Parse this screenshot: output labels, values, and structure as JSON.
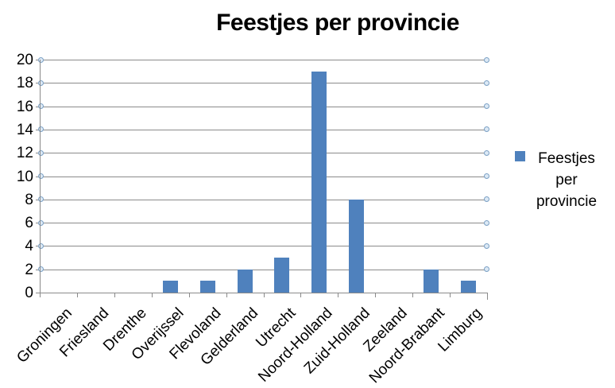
{
  "chart_data": {
    "type": "bar",
    "title": "Feestjes per provincie",
    "series_name": "Feestjes per provincie",
    "categories": [
      "Groningen",
      "Friesland",
      "Drenthe",
      "Overijssel",
      "Flevoland",
      "Gelderland",
      "Utrecht",
      "Noord-Holland",
      "Zuid-Holland",
      "Zeeland",
      "Noord-Brabant",
      "Limburg"
    ],
    "values": [
      0,
      0,
      0,
      1,
      1,
      2,
      3,
      19,
      8,
      0,
      2,
      1
    ],
    "xlabel": "",
    "ylabel": "",
    "ylim": [
      0,
      20
    ],
    "yticks": [
      0,
      2,
      4,
      6,
      8,
      10,
      12,
      14,
      16,
      18,
      20
    ],
    "grid": "horizontal-major",
    "legend": {
      "position": "right",
      "line1": "Feestjes per",
      "line2": "provincie"
    },
    "colors": {
      "bar": "#4F81BD",
      "gridline": "#8A8A8A",
      "axis": "#8A8A8A",
      "marker_fill": "#DCE9F5",
      "marker_stroke": "#7BA0C4",
      "text": "#000000",
      "background": "#FFFFFF"
    }
  }
}
